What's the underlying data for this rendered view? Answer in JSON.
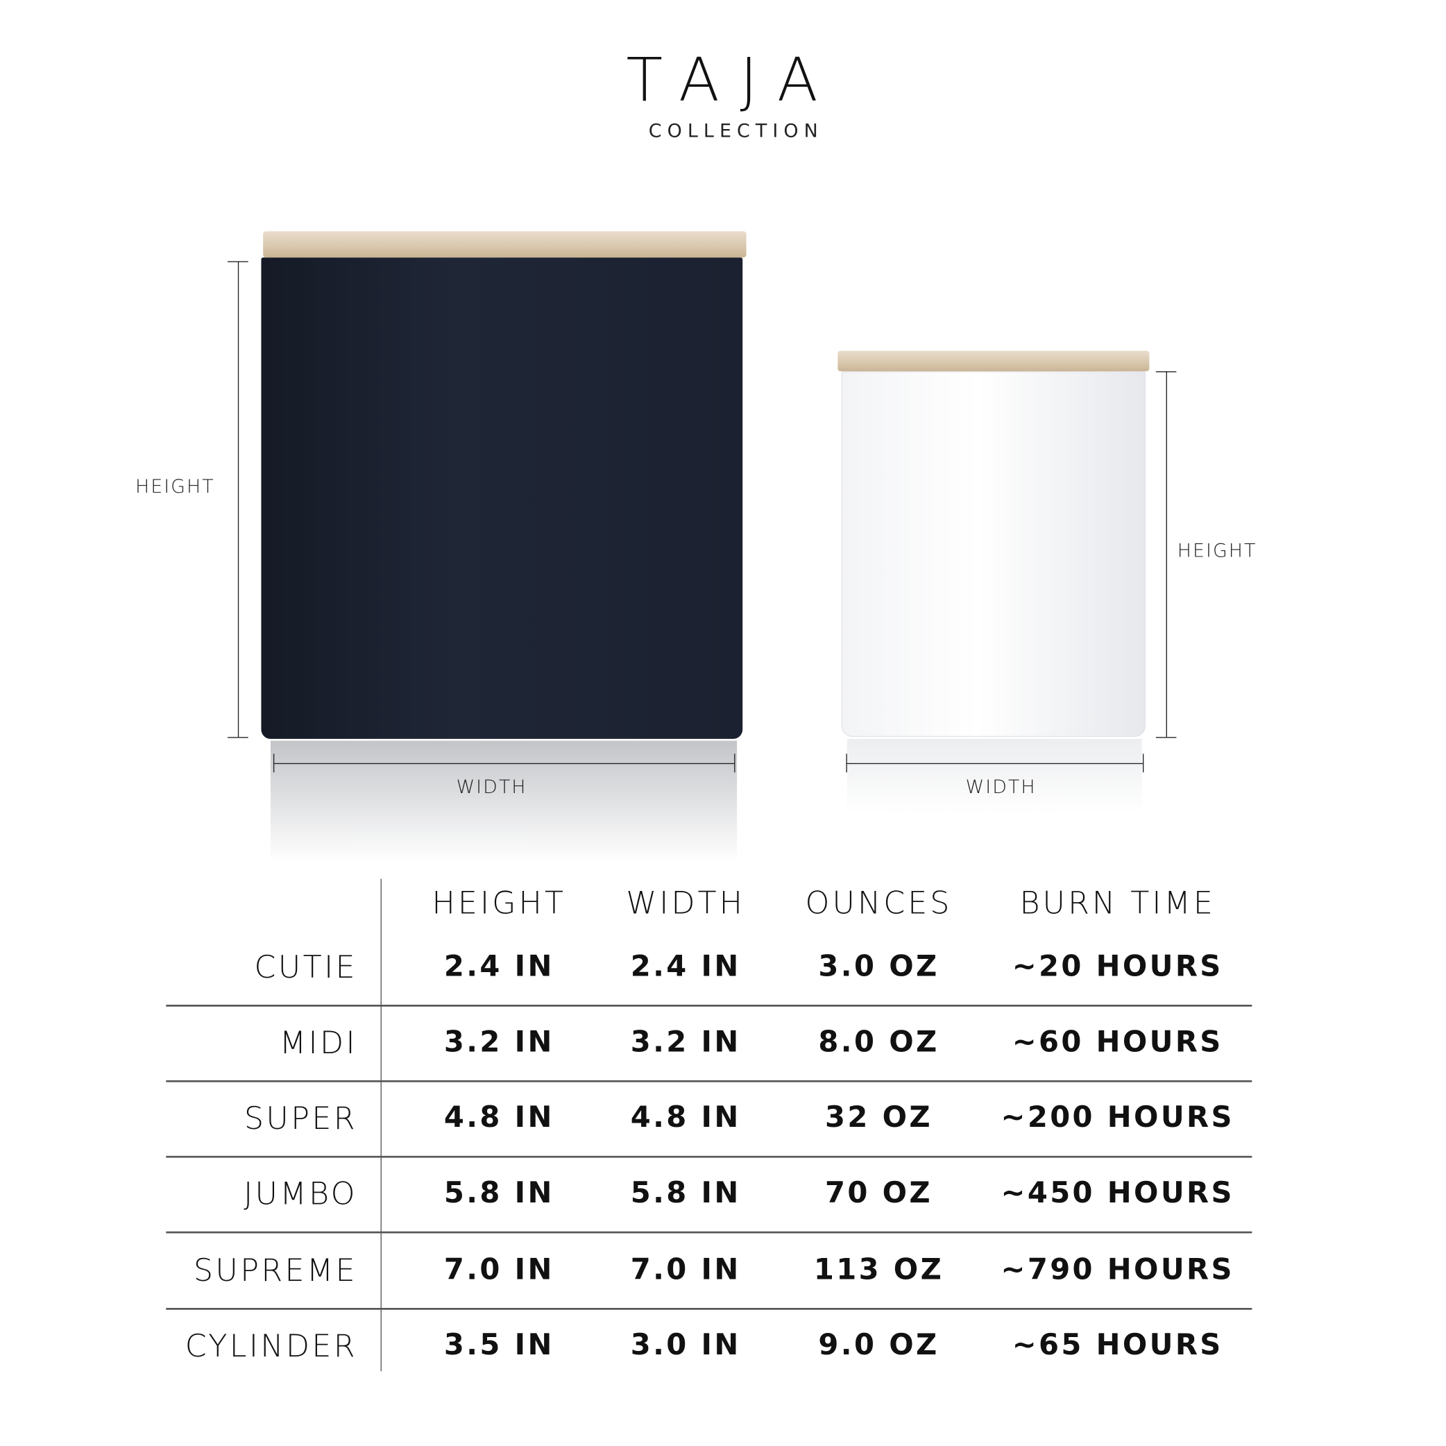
{
  "brand": {
    "name": "TAJA",
    "subtitle": "COLLECTION"
  },
  "products": {
    "left": {
      "jar_color": "#1c2230",
      "height_label": "HEIGHT",
      "width_label": "WIDTH"
    },
    "right": {
      "jar_color": "#f2f3f5",
      "height_label": "HEIGHT",
      "width_label": "WIDTH"
    }
  },
  "table": {
    "headers": [
      "HEIGHT",
      "WIDTH",
      "OUNCES",
      "BURN TIME"
    ],
    "rows": [
      {
        "name": "CUTIE",
        "values": [
          "2.4 IN",
          "2.4 IN",
          "3.0 OZ",
          "~20 HOURS"
        ]
      },
      {
        "name": "MIDI",
        "values": [
          "3.2 IN",
          "3.2 IN",
          "8.0 OZ",
          "~60 HOURS"
        ]
      },
      {
        "name": "SUPER",
        "values": [
          "4.8 IN",
          "4.8 IN",
          "32 OZ",
          "~200 HOURS"
        ]
      },
      {
        "name": "JUMBO",
        "values": [
          "5.8 IN",
          "5.8 IN",
          "70 OZ",
          "~450 HOURS"
        ]
      },
      {
        "name": "SUPREME",
        "values": [
          "7.0 IN",
          "7.0 IN",
          "113 OZ",
          "~790 HOURS"
        ]
      },
      {
        "name": "CYLINDER",
        "values": [
          "3.5 IN",
          "3.0 IN",
          "9.0 OZ",
          "~65 HOURS"
        ]
      }
    ]
  }
}
